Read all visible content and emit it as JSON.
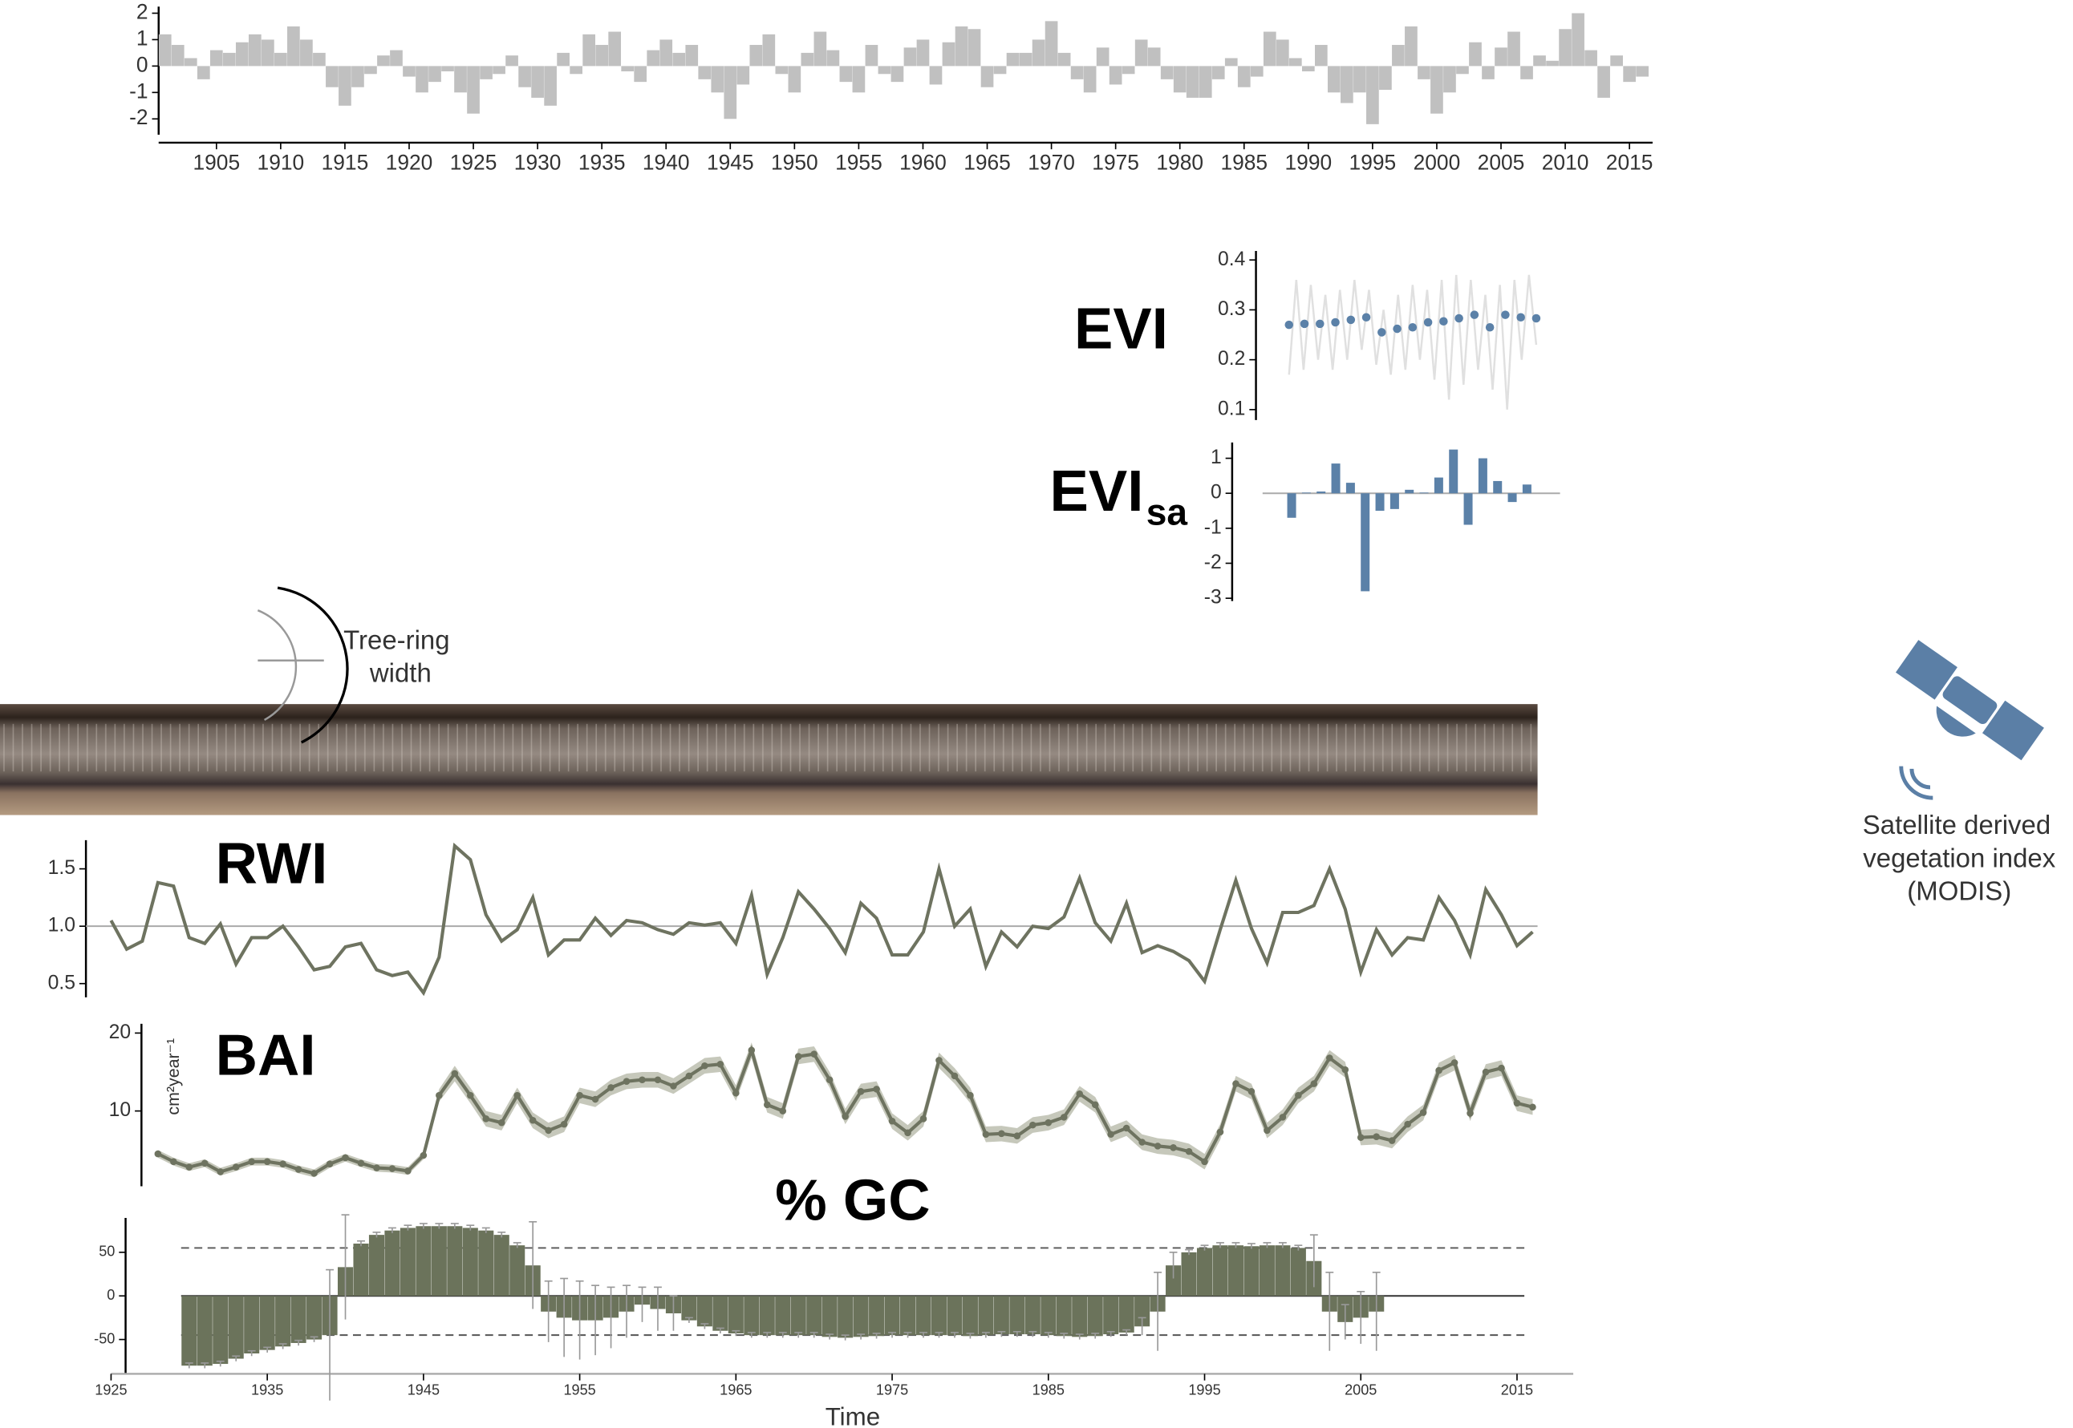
{
  "chart_data": [
    {
      "type": "bar",
      "color": "#c0c0c0",
      "x": [
        1901,
        1902,
        1903,
        1904,
        1905,
        1906,
        1907,
        1908,
        1909,
        1910,
        1911,
        1912,
        1913,
        1914,
        1915,
        1916,
        1917,
        1918,
        1919,
        1920,
        1921,
        1922,
        1923,
        1924,
        1925,
        1926,
        1927,
        1928,
        1929,
        1930,
        1931,
        1932,
        1933,
        1934,
        1935,
        1936,
        1937,
        1938,
        1939,
        1940,
        1941,
        1942,
        1943,
        1944,
        1945,
        1946,
        1947,
        1948,
        1949,
        1950,
        1951,
        1952,
        1953,
        1954,
        1955,
        1956,
        1957,
        1958,
        1959,
        1960,
        1961,
        1962,
        1963,
        1964,
        1965,
        1966,
        1967,
        1968,
        1969,
        1970,
        1971,
        1972,
        1973,
        1974,
        1975,
        1976,
        1977,
        1978,
        1979,
        1980,
        1981,
        1982,
        1983,
        1984,
        1985,
        1986,
        1987,
        1988,
        1989,
        1990,
        1991,
        1992,
        1993,
        1994,
        1995,
        1996,
        1997,
        1998,
        1999,
        2000,
        2001,
        2002,
        2003,
        2004,
        2005,
        2006,
        2007,
        2008,
        2009,
        2010,
        2011,
        2012,
        2013,
        2014,
        2015,
        2016
      ],
      "values": [
        1.2,
        0.8,
        0.3,
        -0.5,
        0.6,
        0.5,
        0.9,
        1.2,
        1.0,
        0.5,
        1.5,
        1.0,
        0.5,
        -0.8,
        -1.5,
        -0.8,
        -0.3,
        0.4,
        0.6,
        -0.4,
        -1.0,
        -0.6,
        -0.2,
        -1.0,
        -1.8,
        -0.5,
        -0.3,
        0.4,
        -0.8,
        -1.2,
        -1.5,
        0.5,
        -0.3,
        1.2,
        0.8,
        1.3,
        -0.2,
        -0.6,
        0.6,
        1.0,
        0.5,
        0.8,
        -0.5,
        -1.0,
        -2.0,
        -0.7,
        0.8,
        1.2,
        -0.3,
        -1.0,
        0.5,
        1.3,
        0.6,
        -0.6,
        -1.0,
        0.8,
        -0.3,
        -0.6,
        0.7,
        1.0,
        -0.7,
        0.9,
        1.5,
        1.4,
        -0.8,
        -0.3,
        0.5,
        0.5,
        1.0,
        1.7,
        0.5,
        -0.5,
        -1.0,
        0.7,
        -0.7,
        -0.3,
        1.0,
        0.7,
        -0.5,
        -1.0,
        -1.2,
        -1.2,
        -0.5,
        0.3,
        -0.8,
        -0.4,
        1.3,
        1.0,
        0.3,
        -0.2,
        0.8,
        -1.0,
        -1.4,
        -1.0,
        -2.2,
        -0.9,
        0.8,
        1.5,
        -0.5,
        -1.8,
        -1.0,
        -0.3,
        0.9,
        -0.5,
        0.7,
        1.3,
        -0.5,
        0.4,
        0.2,
        1.4,
        2.0,
        0.6,
        -1.2,
        0.4,
        -0.6,
        -0.4
      ],
      "xlim": [
        1900.5,
        2016.8
      ],
      "xticks": [
        1905,
        1910,
        1915,
        1920,
        1925,
        1930,
        1935,
        1940,
        1945,
        1950,
        1955,
        1960,
        1965,
        1970,
        1975,
        1980,
        1985,
        1990,
        1995,
        2000,
        2005,
        2010,
        2015
      ],
      "ylim": [
        -2.6,
        2.25
      ],
      "yticks": [
        -2,
        -1,
        0,
        1,
        2
      ]
    },
    {
      "type": "line",
      "title": "EVI",
      "ylim": [
        0.079,
        0.418
      ],
      "yticks": [
        0.1,
        0.2,
        0.3,
        0.4
      ],
      "series": [
        {
          "kind": "line",
          "color": "#e0e0e0",
          "values": [
            0.17,
            0.36,
            0.18,
            0.35,
            0.2,
            0.33,
            0.18,
            0.34,
            0.2,
            0.36,
            0.22,
            0.34,
            0.19,
            0.3,
            0.17,
            0.33,
            0.18,
            0.35,
            0.2,
            0.34,
            0.16,
            0.36,
            0.12,
            0.37,
            0.15,
            0.36,
            0.18,
            0.33,
            0.14,
            0.35,
            0.1,
            0.36,
            0.2,
            0.37,
            0.23
          ]
        },
        {
          "kind": "point",
          "color": "#5b81a8",
          "values": [
            0.27,
            0.272,
            0.272,
            0.275,
            0.28,
            0.285,
            0.255,
            0.262,
            0.265,
            0.275,
            0.277,
            0.283,
            0.29,
            0.265,
            0.29,
            0.285,
            0.283
          ]
        }
      ]
    },
    {
      "type": "bar",
      "title": "EVI",
      "title_subscript": "sa",
      "color": "#5b81a8",
      "ylim": [
        -3.08,
        1.45
      ],
      "yticks": [
        -3,
        -2,
        -1,
        0,
        1
      ],
      "values": [
        -0.7,
        0.02,
        0.05,
        0.85,
        0.3,
        -2.8,
        -0.5,
        -0.45,
        0.1,
        0.02,
        0.45,
        1.25,
        -0.9,
        1.0,
        0.35,
        -0.25,
        0.25
      ],
      "reference_lines": [
        {
          "value": 0,
          "style": "solid"
        }
      ]
    },
    {
      "type": "line",
      "title": "RWI",
      "color": "#6e7360",
      "x": [
        1925,
        1926,
        1927,
        1928,
        1929,
        1930,
        1931,
        1932,
        1933,
        1934,
        1935,
        1936,
        1937,
        1938,
        1939,
        1940,
        1941,
        1942,
        1943,
        1944,
        1945,
        1946,
        1947,
        1948,
        1949,
        1950,
        1951,
        1952,
        1953,
        1954,
        1955,
        1956,
        1957,
        1958,
        1959,
        1960,
        1961,
        1962,
        1963,
        1964,
        1965,
        1966,
        1967,
        1968,
        1969,
        1970,
        1971,
        1972,
        1973,
        1974,
        1975,
        1976,
        1977,
        1978,
        1979,
        1980,
        1981,
        1982,
        1983,
        1984,
        1985,
        1986,
        1987,
        1988,
        1989,
        1990,
        1991,
        1992,
        1993,
        1994,
        1995,
        1996,
        1997,
        1998,
        1999,
        2000,
        2001,
        2002,
        2003,
        2004,
        2005,
        2006,
        2007,
        2008,
        2009,
        2010,
        2011,
        2012,
        2013,
        2014,
        2015,
        2016
      ],
      "values": [
        1.05,
        0.8,
        0.87,
        1.38,
        1.35,
        0.9,
        0.85,
        1.02,
        0.67,
        0.9,
        0.9,
        1.0,
        0.82,
        0.62,
        0.65,
        0.82,
        0.85,
        0.62,
        0.57,
        0.6,
        0.42,
        0.73,
        1.7,
        1.58,
        1.1,
        0.87,
        0.97,
        1.25,
        0.75,
        0.88,
        0.88,
        1.07,
        0.92,
        1.05,
        1.03,
        0.97,
        0.93,
        1.03,
        1.01,
        1.03,
        0.85,
        1.27,
        0.58,
        0.9,
        1.3,
        1.15,
        0.98,
        0.77,
        1.2,
        1.07,
        0.75,
        0.75,
        0.95,
        1.5,
        1.0,
        1.15,
        0.65,
        0.95,
        0.82,
        1.0,
        0.98,
        1.08,
        1.42,
        1.03,
        0.87,
        1.2,
        0.77,
        0.83,
        0.78,
        0.7,
        0.52,
        0.97,
        1.4,
        0.98,
        0.68,
        1.12,
        1.12,
        1.18,
        1.5,
        1.15,
        0.6,
        0.97,
        0.75,
        0.9,
        0.88,
        1.25,
        1.05,
        0.75,
        1.32,
        1.1,
        0.83,
        0.95
      ],
      "xlim": [
        1925,
        2018.6
      ],
      "ylim": [
        0.38,
        1.75
      ],
      "yticks": [
        0.5,
        {
          "value": 1,
          "label": "1.0"
        },
        1.5
      ],
      "reference_lines": [
        {
          "value": 1,
          "style": "solid"
        }
      ]
    },
    {
      "type": "line",
      "title": "BAI",
      "ylabel": "cm²year⁻¹",
      "color": "#6e7360",
      "band_color": "#c6c8bb",
      "x": [
        1928,
        1929,
        1930,
        1931,
        1932,
        1933,
        1934,
        1935,
        1936,
        1937,
        1938,
        1939,
        1940,
        1941,
        1942,
        1943,
        1944,
        1945,
        1946,
        1947,
        1948,
        1949,
        1950,
        1951,
        1952,
        1953,
        1954,
        1955,
        1956,
        1957,
        1958,
        1959,
        1960,
        1961,
        1962,
        1963,
        1964,
        1965,
        1966,
        1967,
        1968,
        1969,
        1970,
        1971,
        1972,
        1973,
        1974,
        1975,
        1976,
        1977,
        1978,
        1979,
        1980,
        1981,
        1982,
        1983,
        1984,
        1985,
        1986,
        1987,
        1988,
        1989,
        1990,
        1991,
        1992,
        1993,
        1994,
        1995,
        1996,
        1997,
        1998,
        1999,
        2000,
        2001,
        2002,
        2003,
        2004,
        2005,
        2006,
        2007,
        2008,
        2009,
        2010,
        2011,
        2012,
        2013,
        2014,
        2015,
        2016
      ],
      "values": [
        4.5,
        3.5,
        2.8,
        3.3,
        2.2,
        2.8,
        3.5,
        3.5,
        3.2,
        2.5,
        2.0,
        3.2,
        4.0,
        3.3,
        2.7,
        2.6,
        2.3,
        4.3,
        12,
        14.8,
        12,
        9,
        8.5,
        12,
        8.8,
        7.5,
        8.3,
        12,
        11.5,
        13,
        13.8,
        14,
        14,
        13.2,
        14.5,
        15.8,
        16,
        12.3,
        17.8,
        10.8,
        10,
        17,
        17.3,
        14,
        9.3,
        12.5,
        12.8,
        8.7,
        7.2,
        9,
        16.5,
        14.5,
        12,
        7,
        7.1,
        6.8,
        8.2,
        8.5,
        9.2,
        12.2,
        10.8,
        7,
        7.8,
        6,
        5.5,
        5.3,
        4.8,
        3.5,
        7.3,
        13.5,
        12.5,
        7.5,
        9.2,
        12,
        13.5,
        16.8,
        15.3,
        6.6,
        6.7,
        6.2,
        8.3,
        9.8,
        15.2,
        16.2,
        9.7,
        15,
        15.5,
        11,
        10.5
      ],
      "errors": [
        0.5,
        0.5,
        0.5,
        0.5,
        0.5,
        0.5,
        0.5,
        0.5,
        0.5,
        0.5,
        0.5,
        0.5,
        0.5,
        0.5,
        0.5,
        0.5,
        0.5,
        0.5,
        0.8,
        1,
        1,
        1,
        1,
        1,
        1,
        1,
        1,
        1,
        1,
        1,
        1,
        1,
        1,
        1,
        1,
        1,
        1,
        1,
        1,
        1,
        1,
        1,
        1,
        1,
        1,
        1,
        1,
        1,
        1,
        1,
        1,
        1,
        1,
        1,
        1,
        1,
        1,
        1,
        1,
        1,
        1,
        1,
        1,
        1,
        1,
        1,
        1,
        1,
        1,
        1,
        1,
        1,
        1,
        1,
        1,
        1,
        1,
        1,
        1,
        1,
        1,
        1,
        1,
        1,
        1,
        1,
        1,
        1,
        1
      ],
      "xlim": [
        1925,
        2018.6
      ],
      "ylim": [
        0.34,
        21.19
      ],
      "yticks": [
        10,
        20
      ]
    },
    {
      "type": "bar",
      "title": "% GC",
      "xlabel": "Time",
      "color": "#6b735b",
      "x": [
        1930,
        1931,
        1932,
        1933,
        1934,
        1935,
        1936,
        1937,
        1938,
        1939,
        1940,
        1941,
        1942,
        1943,
        1944,
        1945,
        1946,
        1947,
        1948,
        1949,
        1950,
        1951,
        1952,
        1953,
        1954,
        1955,
        1956,
        1957,
        1958,
        1959,
        1960,
        1961,
        1962,
        1963,
        1964,
        1965,
        1966,
        1967,
        1968,
        1969,
        1970,
        1971,
        1972,
        1973,
        1974,
        1975,
        1976,
        1977,
        1978,
        1979,
        1980,
        1981,
        1982,
        1983,
        1984,
        1985,
        1986,
        1987,
        1988,
        1989,
        1990,
        1991,
        1992,
        1993,
        1994,
        1995,
        1996,
        1997,
        1998,
        1999,
        2000,
        2001,
        2002,
        2003,
        2004,
        2005,
        2006
      ],
      "values": [
        -80,
        -80,
        -78,
        -72,
        -66,
        -62,
        -58,
        -54,
        -50,
        -45,
        33,
        60,
        70,
        75,
        78,
        80,
        80,
        80,
        78,
        75,
        70,
        58,
        35,
        -18,
        -25,
        -28,
        -28,
        -25,
        -18,
        -10,
        -15,
        -20,
        -28,
        -35,
        -40,
        -43,
        -45,
        -45,
        -45,
        -45,
        -45,
        -47,
        -48,
        -47,
        -46,
        -45,
        -45,
        -45,
        -45,
        -45,
        -46,
        -45,
        -44,
        -44,
        -44,
        -45,
        -46,
        -47,
        -46,
        -44,
        -42,
        -35,
        -18,
        35,
        50,
        55,
        58,
        58,
        57,
        58,
        58,
        55,
        40,
        -18,
        -30,
        -25,
        -18
      ],
      "errors": [
        3,
        3,
        3,
        3,
        3,
        3,
        3,
        3,
        3,
        75,
        60,
        3,
        3,
        3,
        3,
        3,
        3,
        3,
        3,
        3,
        3,
        3,
        50,
        35,
        45,
        45,
        40,
        35,
        30,
        20,
        25,
        20,
        3,
        3,
        3,
        3,
        3,
        3,
        3,
        3,
        3,
        3,
        3,
        3,
        3,
        3,
        3,
        3,
        3,
        3,
        3,
        3,
        3,
        3,
        3,
        3,
        3,
        3,
        3,
        3,
        3,
        10,
        45,
        15,
        3,
        3,
        3,
        3,
        3,
        3,
        3,
        3,
        30,
        45,
        20,
        30,
        45
      ],
      "xlim": [
        1925,
        2018.6
      ],
      "xticks": [
        1925,
        1935,
        1945,
        1955,
        1965,
        1975,
        1985,
        1995,
        2005,
        2015
      ],
      "ylim": [
        -89.4,
        89.4
      ],
      "yticks": [
        -50,
        0,
        50
      ],
      "reference_lines": [
        {
          "value": 0,
          "style": "solid"
        },
        {
          "value": 55,
          "style": "dashed"
        },
        {
          "value": -45,
          "style": "dashed"
        }
      ]
    }
  ],
  "tree_ring_label": [
    "Tree-ring",
    "width"
  ],
  "satellite_label": [
    "Satellite derived",
    "vegetation index",
    "(MODIS)"
  ]
}
